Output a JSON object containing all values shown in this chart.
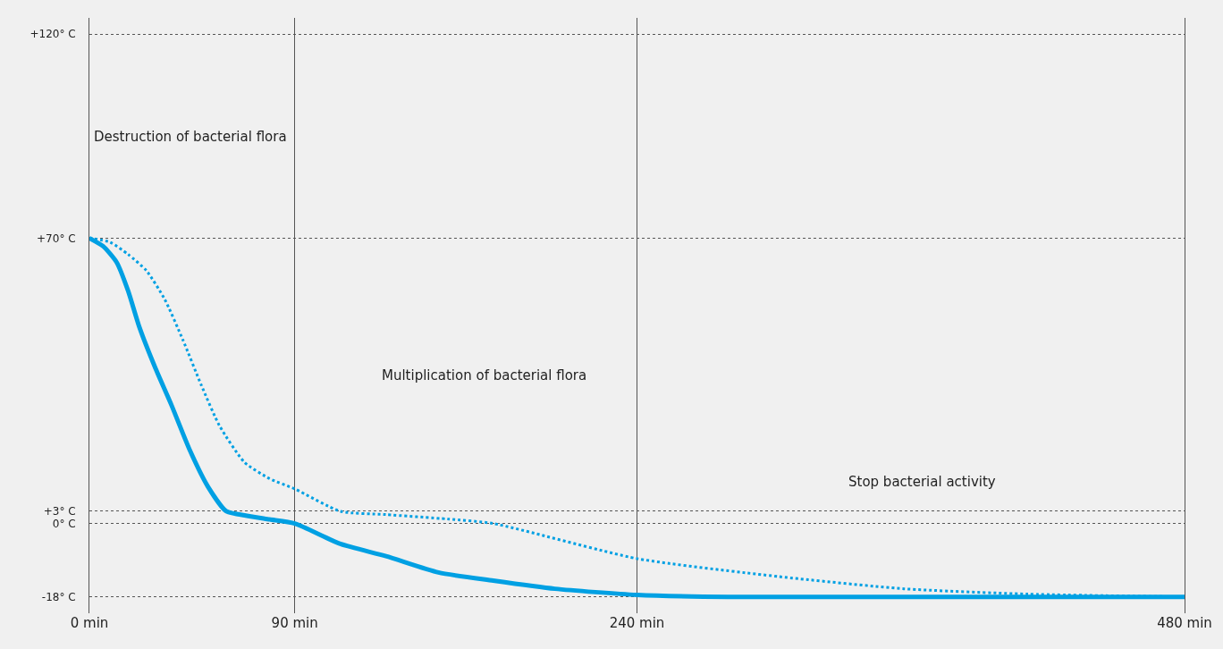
{
  "chart_data": {
    "type": "line",
    "xlim": [
      0,
      480
    ],
    "ylim": [
      -22,
      124
    ],
    "xticks": [
      {
        "value": 0,
        "label": "0 min"
      },
      {
        "value": 90,
        "label": "90 min"
      },
      {
        "value": 240,
        "label": "240 min"
      },
      {
        "value": 480,
        "label": "480 min"
      }
    ],
    "yticks": [
      {
        "value": 120,
        "label": "+120° C"
      },
      {
        "value": 70,
        "label": "+70° C"
      },
      {
        "value": 3,
        "label": "+3° C"
      },
      {
        "value": 0,
        "label": "0° C"
      },
      {
        "value": -18,
        "label": "-18° C"
      }
    ],
    "grid": true,
    "marker": "none",
    "series": [
      {
        "color": "#00a0e3",
        "line_style": "solid",
        "x": [
          0,
          6,
          12,
          17,
          22,
          29,
          36,
          44,
          52,
          60,
          68,
          79,
          90,
          110,
          130,
          153,
          177,
          204,
          240,
          280,
          480
        ],
        "values": [
          70,
          68,
          64,
          57,
          48,
          38,
          29,
          18,
          9,
          3,
          2,
          1,
          0,
          -5,
          -8,
          -12,
          -14,
          -16,
          -17.5,
          -18,
          -18
        ]
      },
      {
        "color": "#00a0e3",
        "line_style": "dotted",
        "x": [
          0,
          9,
          17,
          25,
          33,
          41,
          49,
          57,
          68,
          79,
          90,
          110,
          130,
          157,
          177,
          240,
          302,
          357,
          411,
          480
        ],
        "values": [
          70,
          69,
          66,
          62,
          55,
          45,
          34,
          24,
          15,
          11,
          8.5,
          3,
          2.2,
          1.1,
          0,
          -8.6,
          -13,
          -16,
          -17.3,
          -18
        ]
      }
    ],
    "annotations": [
      "Destruction of bacterial flora",
      "Multiplication of bacterial flora",
      "Stop bacterial activity"
    ]
  }
}
